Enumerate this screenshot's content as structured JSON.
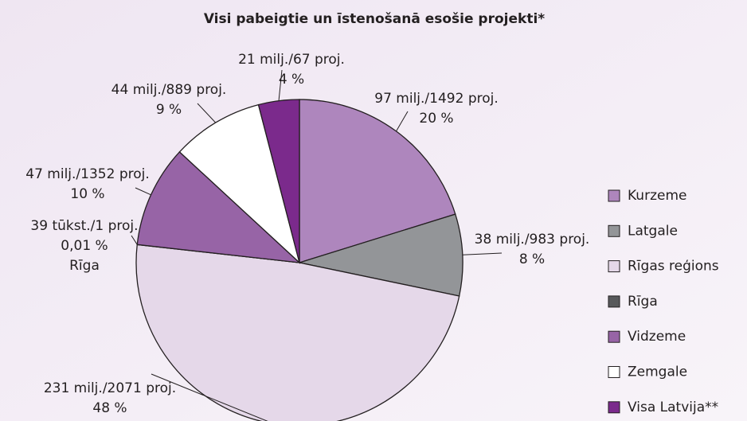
{
  "chart_data": {
    "type": "pie",
    "title": "Visi pabeigtie un īstenošanā esošie projekti*",
    "categories": [
      "Kurzeme",
      "Latgale",
      "Rīgas reģions",
      "Rīga",
      "Vidzeme",
      "Zemgale",
      "Visa Latvija**"
    ],
    "values": [
      20,
      8,
      48,
      0.01,
      10,
      9,
      4
    ],
    "value_labels": [
      "20 %",
      "8 %",
      "48 %",
      "0,01 %",
      "10 %",
      "9 %",
      "4 %"
    ],
    "details": [
      "97 milj./1492 proj.",
      "38 milj./983 proj.",
      "231 milj./2071 proj.",
      "39 tūkst./1 proj.",
      "47 milj./1352 proj.",
      "44 milj./889 proj.",
      "21 milj./67 proj."
    ],
    "colors": [
      "#ae86bd",
      "#939598",
      "#e5d8e9",
      "#58595b",
      "#9764a6",
      "#ffffff",
      "#7b2a8c"
    ],
    "legend": "right"
  }
}
